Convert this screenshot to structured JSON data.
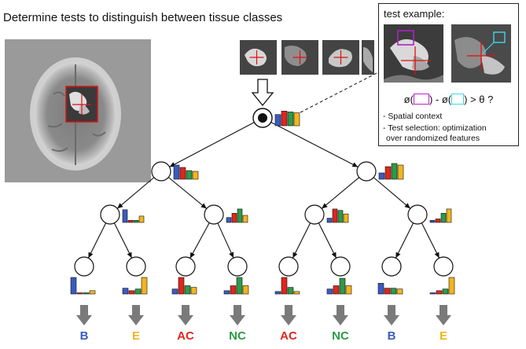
{
  "title": "Determine tests to distinguish between tissue classes",
  "test_example": {
    "heading": "test example:",
    "formula": "ø(□) - ø(□) > θ ?",
    "formula_parts": [
      "ø(",
      ") - ø(",
      ") > θ ?"
    ],
    "notes": [
      "- Spatial context",
      "- Test selection: optimization",
      "  over randomized features"
    ]
  },
  "class_colors": {
    "B": "#3a5bbf",
    "E": "#f2b51e",
    "AC": "#e0261c",
    "NC": "#2e9a48"
  },
  "root_bars": [
    0.65,
    0.85,
    0.8,
    0.75
  ],
  "level1_bars": [
    [
      0.9,
      0.75,
      0.55,
      0.5
    ],
    [
      0.4,
      0.8,
      1.0,
      0.9
    ]
  ],
  "level2_bars": [
    [
      0.9,
      0.15,
      0.15,
      0.45
    ],
    [
      0.35,
      0.65,
      0.95,
      0.5
    ],
    [
      0.3,
      0.95,
      0.85,
      0.6
    ],
    [
      0.15,
      0.25,
      0.65,
      0.95
    ]
  ],
  "leaf_bars": [
    [
      1.0,
      0.05,
      0.05,
      0.2
    ],
    [
      0.35,
      0.2,
      0.3,
      1.0
    ],
    [
      0.3,
      1.0,
      0.5,
      0.4
    ],
    [
      0.2,
      0.5,
      1.0,
      0.5
    ],
    [
      0.15,
      1.0,
      0.4,
      0.15
    ],
    [
      0.3,
      0.5,
      0.95,
      0.5
    ],
    [
      0.65,
      0.35,
      0.35,
      0.3
    ],
    [
      0.05,
      0.2,
      0.3,
      1.0
    ]
  ],
  "leaf_labels": [
    "B",
    "E",
    "AC",
    "NC",
    "AC",
    "NC",
    "B",
    "E"
  ]
}
